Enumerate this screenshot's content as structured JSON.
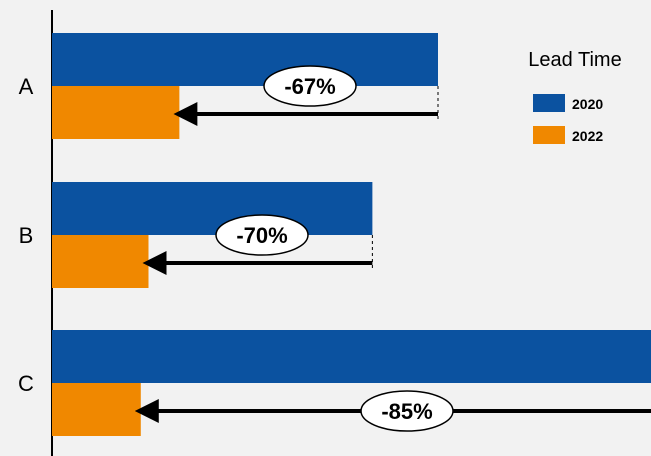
{
  "chart_data": {
    "type": "bar",
    "orientation": "horizontal",
    "categories": [
      "A",
      "B",
      "C"
    ],
    "series": [
      {
        "name": "2020",
        "values": [
          100,
          83,
          156
        ],
        "color": "#0b52a0"
      },
      {
        "name": "2022",
        "values": [
          33,
          25,
          23
        ],
        "color": "#f08800"
      }
    ],
    "annotations": [
      "-67%",
      "-70%",
      "-85%"
    ],
    "legend": {
      "title": "Lead Time",
      "position": "top-right"
    },
    "title": "",
    "xlabel": "",
    "ylabel": "",
    "grid": false
  }
}
